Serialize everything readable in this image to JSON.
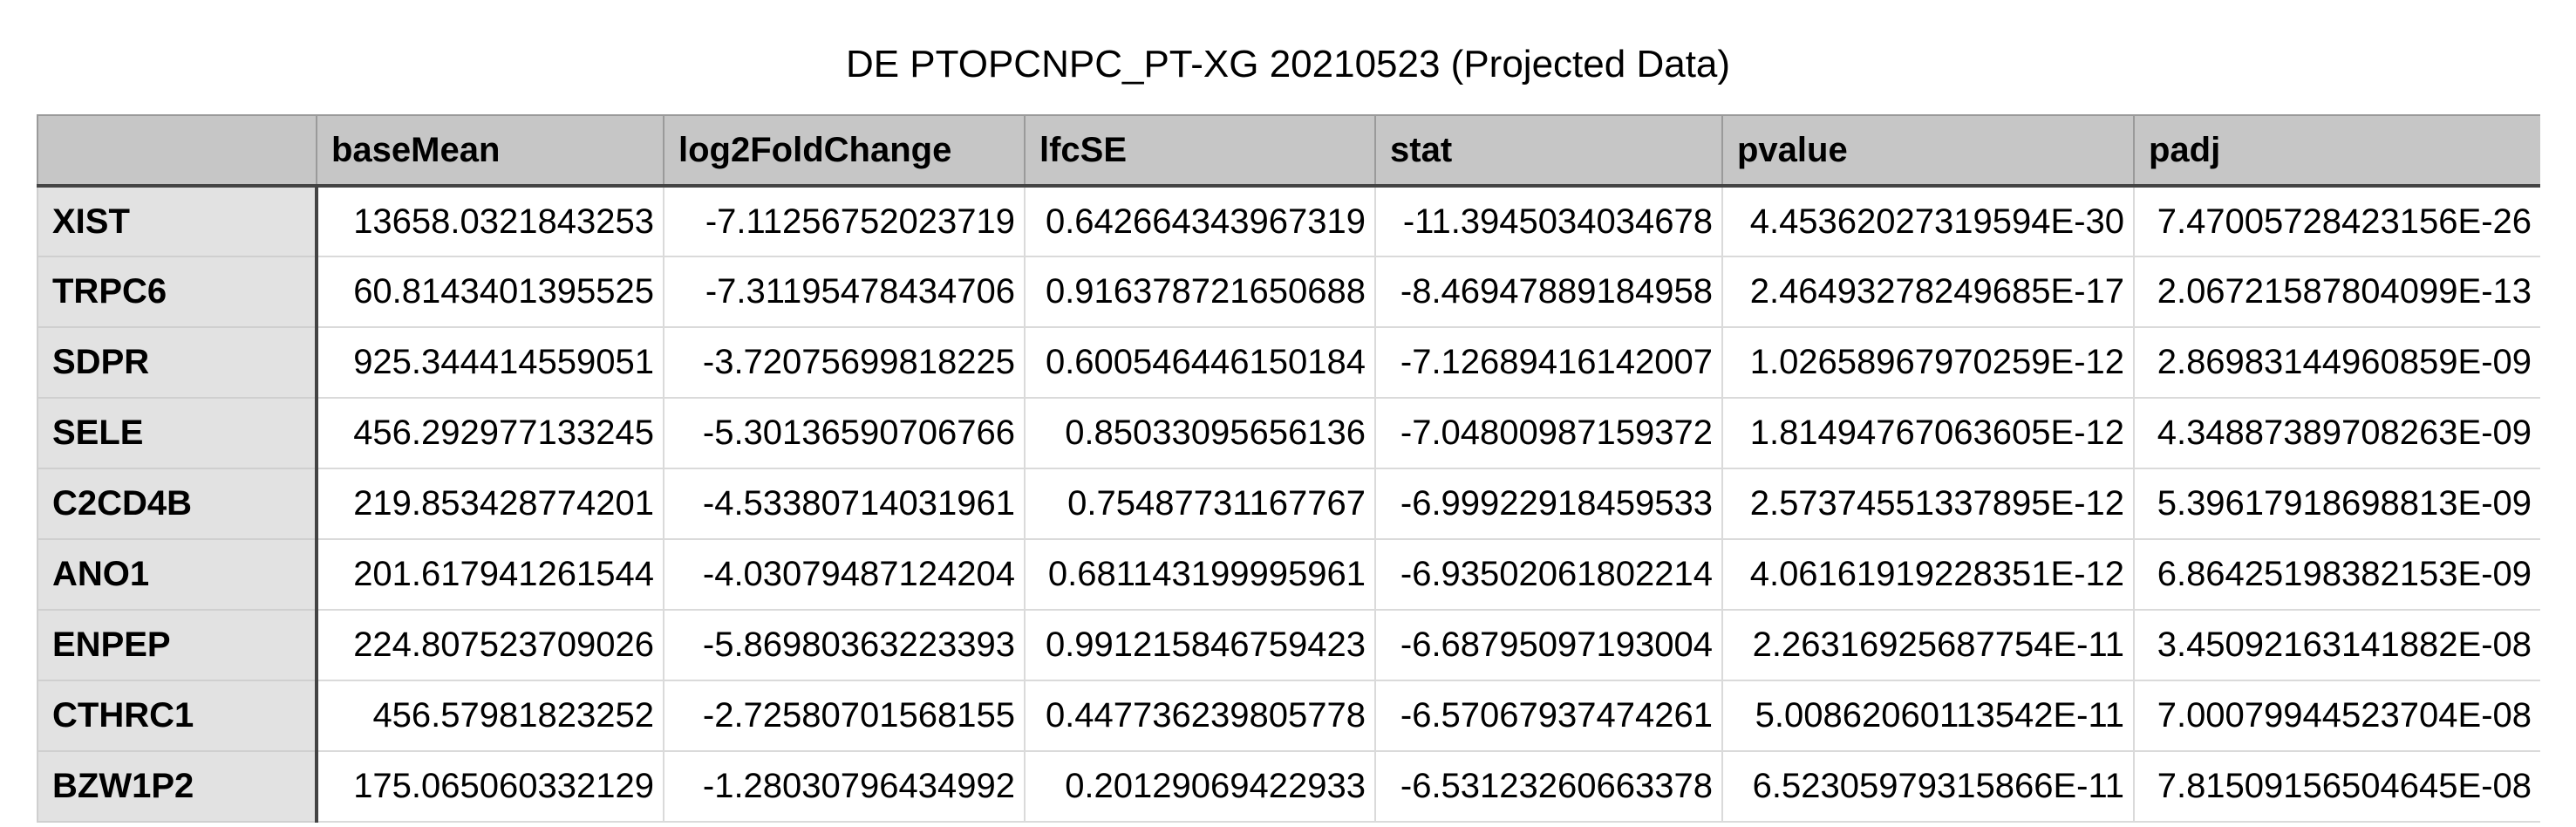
{
  "title": "DE PTOPCNPC_PT-XG 20210523 (Projected Data)",
  "table": {
    "columns": [
      "",
      "baseMean",
      "log2FoldChange",
      "lfcSE",
      "stat",
      "pvalue",
      "padj"
    ],
    "rows": [
      {
        "gene": "XIST",
        "cells": [
          "13658.0321843253",
          "-7.11256752023719",
          "0.642664343967319",
          "-11.3945034034678",
          "4.45362027319594E-30",
          "7.47005728423156E-26"
        ]
      },
      {
        "gene": "TRPC6",
        "cells": [
          "60.8143401395525",
          "-7.31195478434706",
          "0.916378721650688",
          "-8.46947889184958",
          "2.46493278249685E-17",
          "2.06721587804099E-13"
        ]
      },
      {
        "gene": "SDPR",
        "cells": [
          "925.344414559051",
          "-3.72075699818225",
          "0.600546446150184",
          "-7.12689416142007",
          "1.02658967970259E-12",
          "2.86983144960859E-09"
        ]
      },
      {
        "gene": "SELE",
        "cells": [
          "456.292977133245",
          "-5.30136590706766",
          "0.85033095656136",
          "-7.04800987159372",
          "1.81494767063605E-12",
          "4.34887389708263E-09"
        ]
      },
      {
        "gene": "C2CD4B",
        "cells": [
          "219.853428774201",
          "-4.53380714031961",
          "0.75487731167767",
          "-6.99922918459533",
          "2.57374551337895E-12",
          "5.39617918698813E-09"
        ]
      },
      {
        "gene": "ANO1",
        "cells": [
          "201.617941261544",
          "-4.03079487124204",
          "0.681143199995961",
          "-6.93502061802214",
          "4.06161919228351E-12",
          "6.86425198382153E-09"
        ]
      },
      {
        "gene": "ENPEP",
        "cells": [
          "224.807523709026",
          "-5.86980363223393",
          "0.991215846759423",
          "-6.68795097193004",
          "2.26316925687754E-11",
          "3.45092163141882E-08"
        ]
      },
      {
        "gene": "CTHRC1",
        "cells": [
          "456.57981823252",
          "-2.72580701568155",
          "0.447736239805778",
          "-6.57067937474261",
          "5.00862060113542E-11",
          "7.00079944523704E-08"
        ]
      },
      {
        "gene": "BZW1P2",
        "cells": [
          "175.065060332129",
          "-1.28030796434992",
          "0.20129069422933",
          "-6.53123260663378",
          "6.52305979315866E-11",
          "7.81509156504645E-08"
        ]
      }
    ]
  }
}
